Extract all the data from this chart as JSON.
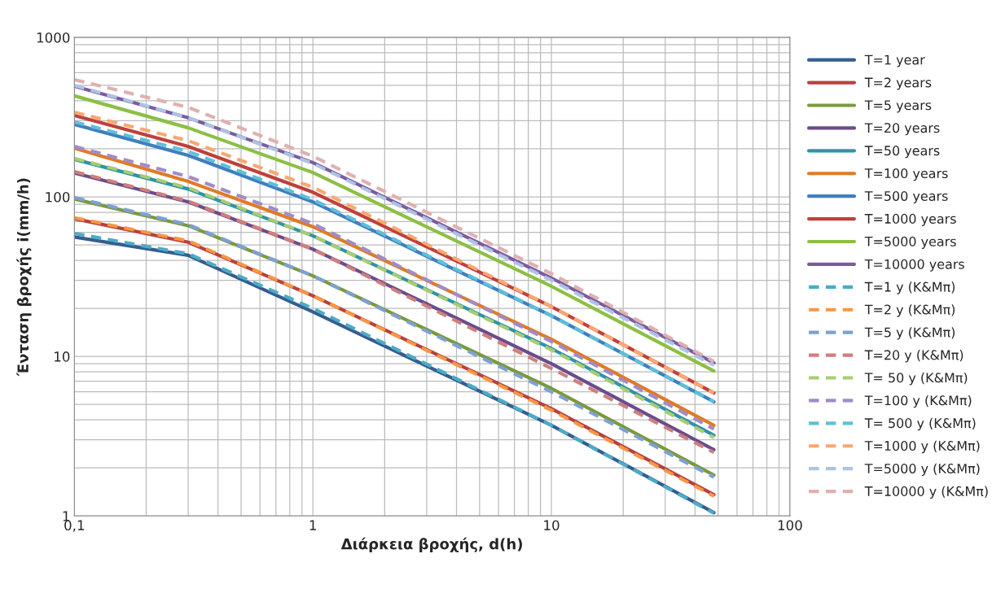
{
  "chart_data": {
    "type": "line",
    "xlabel": "Διάρκεια βροχής, d(h)",
    "ylabel": "Ένταση βροχής i(mm/h)",
    "log": "xy",
    "xlim": [
      0.1,
      100
    ],
    "xticks": [
      {
        "value": 0.1,
        "label": "0,1"
      },
      1,
      10,
      100
    ],
    "ylim": [
      1,
      1000
    ],
    "yticks": [
      1,
      10,
      100,
      1000
    ],
    "grid": true,
    "legend": "right",
    "x": [
      0.1,
      0.3,
      1,
      10,
      48
    ],
    "series": [
      {
        "name": "T=1 year",
        "color": "#355e8f",
        "line_style": "solid",
        "values": [
          56,
          43,
          19,
          3.7,
          1.05
        ]
      },
      {
        "name": "T=2 years",
        "color": "#b7413e",
        "line_style": "solid",
        "values": [
          73,
          52,
          24,
          4.7,
          1.36
        ]
      },
      {
        "name": "T=5 years",
        "color": "#7a9a3c",
        "line_style": "solid",
        "values": [
          97,
          66,
          32,
          6.3,
          1.8
        ]
      },
      {
        "name": "T=20 years",
        "color": "#6a4d8c",
        "line_style": "solid",
        "values": [
          141,
          93,
          47,
          9.0,
          2.6
        ]
      },
      {
        "name": "T=50 years",
        "color": "#2e93a8",
        "line_style": "solid",
        "values": [
          172,
          112,
          57,
          11.2,
          3.2
        ]
      },
      {
        "name": "T=100 years",
        "color": "#e07b26",
        "line_style": "solid",
        "values": [
          202,
          125,
          65,
          12.8,
          3.7
        ]
      },
      {
        "name": "T=500 years",
        "color": "#3f7fc0",
        "line_style": "solid",
        "values": [
          285,
          182,
          93,
          18,
          5.2
        ]
      },
      {
        "name": "T=1000 years",
        "color": "#c0403c",
        "line_style": "solid",
        "values": [
          324,
          207,
          107,
          20.5,
          5.9
        ]
      },
      {
        "name": "T=5000 years",
        "color": "#8cbf44",
        "line_style": "solid",
        "values": [
          430,
          271,
          142,
          27.5,
          8.1
        ]
      },
      {
        "name": "T=10000 years",
        "color": "#7a5ca3",
        "line_style": "solid",
        "values": [
          494,
          313,
          164,
          31,
          9.1
        ]
      },
      {
        "name": "T=1 y (K&Mπ)",
        "color": "#4bacc6",
        "line_style": "dashed",
        "values": [
          59,
          44,
          20,
          3.7,
          1.04
        ]
      },
      {
        "name": "T=2 y (K&Mπ)",
        "color": "#f79646",
        "line_style": "dashed",
        "values": [
          74,
          53,
          24,
          4.6,
          1.33
        ]
      },
      {
        "name": "T=5 y (K&Mπ)",
        "color": "#7ea0d6",
        "line_style": "dashed",
        "values": [
          99,
          67,
          32,
          6.0,
          1.75
        ]
      },
      {
        "name": "T=20 y (K&Mπ)",
        "color": "#d07e7c",
        "line_style": "dashed",
        "values": [
          144,
          94,
          47,
          8.4,
          2.5
        ]
      },
      {
        "name": "T= 50 y (K&Mπ)",
        "color": "#a8cc72",
        "line_style": "dashed",
        "values": [
          174,
          114,
          57,
          11,
          3.1
        ]
      },
      {
        "name": "T=100 y (K&Mπ)",
        "color": "#a08cc8",
        "line_style": "dashed",
        "values": [
          207,
          134,
          68,
          12.4,
          3.5
        ]
      },
      {
        "name": "T= 500 y (K&Mπ)",
        "color": "#5fbfd9",
        "line_style": "dashed",
        "values": [
          295,
          193,
          96,
          18,
          5.2
        ]
      },
      {
        "name": "T=1000 y (K&Mπ)",
        "color": "#f9a870",
        "line_style": "dashed",
        "values": [
          339,
          225,
          115,
          20.5,
          5.9
        ]
      },
      {
        "name": "T=5000 y (K&Mπ)",
        "color": "#aec3e3",
        "line_style": "dashed",
        "values": [
          500,
          313,
          162,
          30,
          8.8
        ]
      },
      {
        "name": "T=10000 y (K&Mπ)",
        "color": "#e0b0b0",
        "line_style": "dashed",
        "values": [
          543,
          364,
          180,
          33,
          9.3
        ]
      }
    ]
  }
}
